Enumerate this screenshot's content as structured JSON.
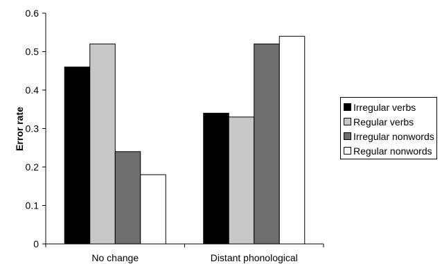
{
  "chart_data": {
    "type": "bar",
    "categories": [
      "No change",
      "Distant phonological"
    ],
    "series": [
      {
        "name": "Irregular verbs",
        "color": "#000000",
        "values": [
          0.46,
          0.34
        ]
      },
      {
        "name": "Regular verbs",
        "color": "#c8c8c8",
        "values": [
          0.52,
          0.33
        ]
      },
      {
        "name": "Irregular nonwords",
        "color": "#6e6e6e",
        "values": [
          0.24,
          0.52
        ]
      },
      {
        "name": "Regular nonwords",
        "color": "#ffffff",
        "values": [
          0.18,
          0.54
        ]
      }
    ],
    "title": "",
    "xlabel": "",
    "ylabel": "Error rate",
    "ylim": [
      0,
      0.6
    ],
    "yticks": [
      "0",
      "0.1",
      "0.2",
      "0.3",
      "0.4",
      "0.5",
      "0.6"
    ],
    "grid": false,
    "legend_position": "right"
  }
}
